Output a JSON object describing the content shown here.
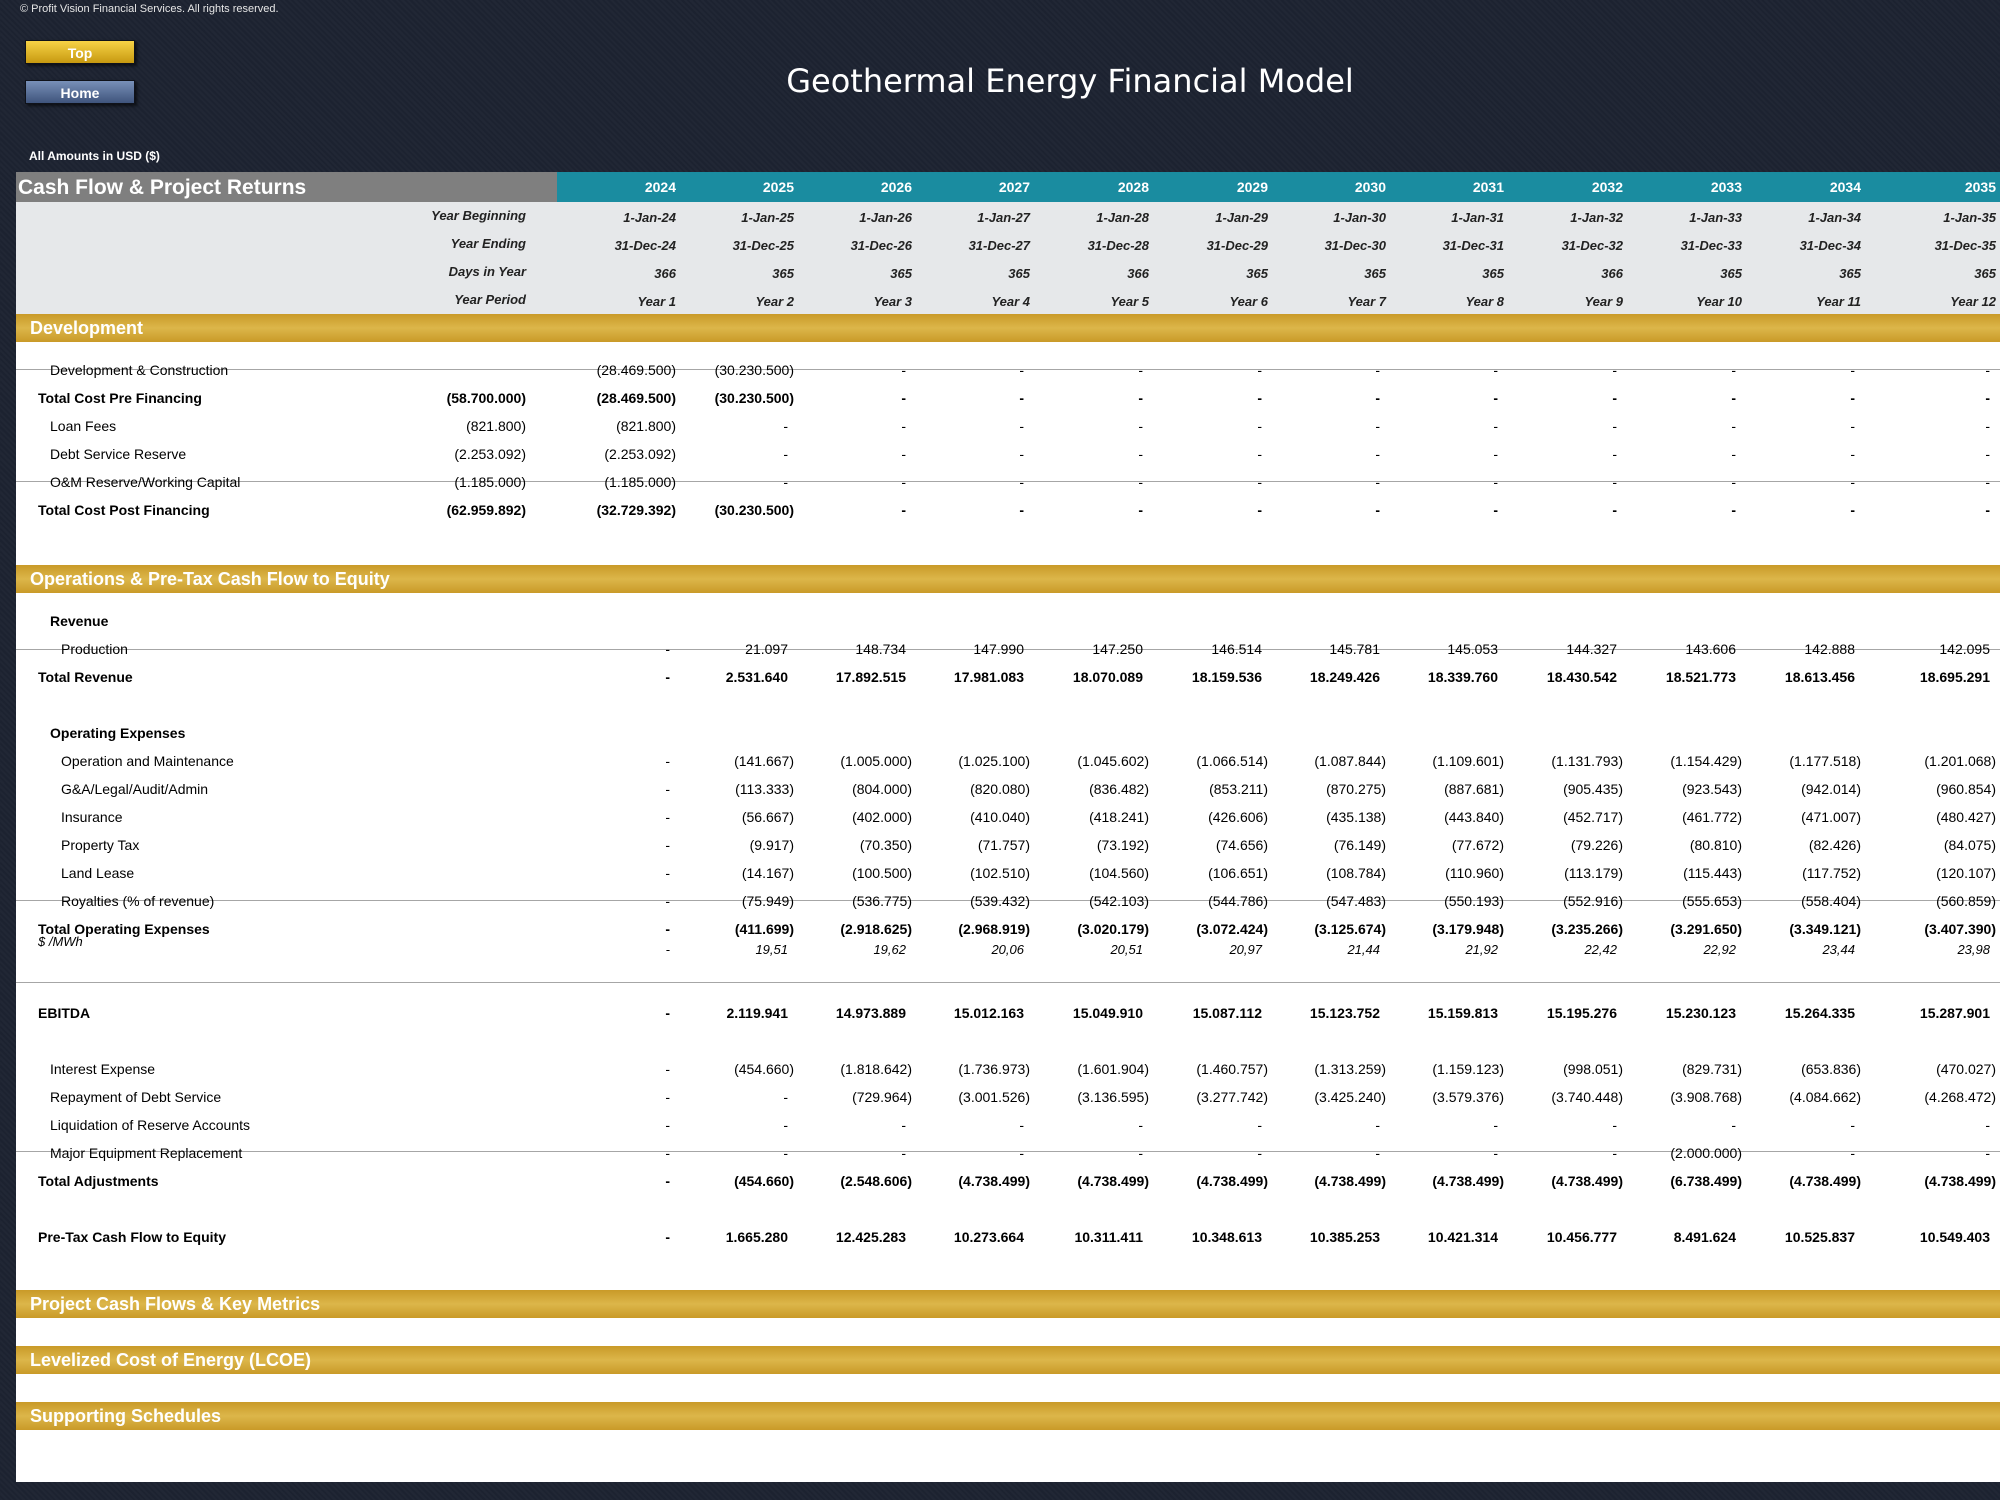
{
  "copyright": "© Profit Vision Financial Services. All rights reserved.",
  "nav": {
    "top": "Top",
    "home": "Home"
  },
  "title": "Geothermal Energy Financial Model",
  "amounts_label": "All Amounts in  USD ($)",
  "section_header": "Cash Flow & Project Returns",
  "years": [
    "2024",
    "2025",
    "2026",
    "2027",
    "2028",
    "2029",
    "2030",
    "2031",
    "2032",
    "2033",
    "2034",
    "2035"
  ],
  "meta": [
    {
      "label": "Year Beginning",
      "values": [
        "1-Jan-24",
        "1-Jan-25",
        "1-Jan-26",
        "1-Jan-27",
        "1-Jan-28",
        "1-Jan-29",
        "1-Jan-30",
        "1-Jan-31",
        "1-Jan-32",
        "1-Jan-33",
        "1-Jan-34",
        "1-Jan-35"
      ]
    },
    {
      "label": "Year Ending",
      "values": [
        "31-Dec-24",
        "31-Dec-25",
        "31-Dec-26",
        "31-Dec-27",
        "31-Dec-28",
        "31-Dec-29",
        "31-Dec-30",
        "31-Dec-31",
        "31-Dec-32",
        "31-Dec-33",
        "31-Dec-34",
        "31-Dec-35"
      ]
    },
    {
      "label": "Days in Year",
      "values": [
        "366",
        "365",
        "365",
        "365",
        "366",
        "365",
        "365",
        "365",
        "366",
        "365",
        "365",
        "365"
      ]
    },
    {
      "label": "Year Period",
      "values": [
        "Year 1",
        "Year 2",
        "Year 3",
        "Year 4",
        "Year 5",
        "Year 6",
        "Year 7",
        "Year 8",
        "Year 9",
        "Year 10",
        "Year 11",
        "Year 12"
      ]
    }
  ],
  "bands": {
    "development": "Development",
    "operations": "Operations & Pre-Tax Cash Flow to Equity",
    "project": "Project Cash Flows & Key Metrics",
    "lcoe": "Levelized Cost of Energy (LCOE)",
    "supporting": "Supporting Schedules"
  },
  "rows": [
    {
      "label": "Development & Construction",
      "total": "",
      "values": [
        "(28.469.500)",
        "(30.230.500)",
        "-",
        "-",
        "-",
        "-",
        "-",
        "-",
        "-",
        "-",
        "-",
        "-"
      ]
    },
    {
      "label": "Total Cost Pre Financing",
      "total": "(58.700.000)",
      "values": [
        "(28.469.500)",
        "(30.230.500)",
        "-",
        "-",
        "-",
        "-",
        "-",
        "-",
        "-",
        "-",
        "-",
        "-"
      ]
    },
    {
      "label": "Loan Fees",
      "total": "(821.800)",
      "values": [
        "(821.800)",
        "-",
        "-",
        "-",
        "-",
        "-",
        "-",
        "-",
        "-",
        "-",
        "-",
        "-"
      ]
    },
    {
      "label": "Debt Service Reserve",
      "total": "(2.253.092)",
      "values": [
        "(2.253.092)",
        "-",
        "-",
        "-",
        "-",
        "-",
        "-",
        "-",
        "-",
        "-",
        "-",
        "-"
      ]
    },
    {
      "label": "O&M Reserve/Working Capital",
      "total": "(1.185.000)",
      "values": [
        "(1.185.000)",
        "-",
        "-",
        "-",
        "-",
        "-",
        "-",
        "-",
        "-",
        "-",
        "-",
        "-"
      ]
    },
    {
      "label": "Total Cost Post Financing",
      "total": "(62.959.892)",
      "values": [
        "(32.729.392)",
        "(30.230.500)",
        "-",
        "-",
        "-",
        "-",
        "-",
        "-",
        "-",
        "-",
        "-",
        "-"
      ]
    },
    {
      "label": "Revenue",
      "total": "",
      "values": [
        "",
        "",
        "",
        "",
        "",
        "",
        "",
        "",
        "",
        "",
        "",
        ""
      ]
    },
    {
      "label": "Production",
      "total": "",
      "values": [
        "-",
        "21.097",
        "148.734",
        "147.990",
        "147.250",
        "146.514",
        "145.781",
        "145.053",
        "144.327",
        "143.606",
        "142.888",
        "142.095"
      ]
    },
    {
      "label": "Total Revenue",
      "total": "",
      "values": [
        "-",
        "2.531.640",
        "17.892.515",
        "17.981.083",
        "18.070.089",
        "18.159.536",
        "18.249.426",
        "18.339.760",
        "18.430.542",
        "18.521.773",
        "18.613.456",
        "18.695.291"
      ]
    },
    {
      "label": "Operating Expenses",
      "total": "",
      "values": [
        "",
        "",
        "",
        "",
        "",
        "",
        "",
        "",
        "",
        "",
        "",
        ""
      ]
    },
    {
      "label": "Operation and Maintenance",
      "total": "",
      "values": [
        "-",
        "(141.667)",
        "(1.005.000)",
        "(1.025.100)",
        "(1.045.602)",
        "(1.066.514)",
        "(1.087.844)",
        "(1.109.601)",
        "(1.131.793)",
        "(1.154.429)",
        "(1.177.518)",
        "(1.201.068)"
      ]
    },
    {
      "label": "G&A/Legal/Audit/Admin",
      "total": "",
      "values": [
        "-",
        "(113.333)",
        "(804.000)",
        "(820.080)",
        "(836.482)",
        "(853.211)",
        "(870.275)",
        "(887.681)",
        "(905.435)",
        "(923.543)",
        "(942.014)",
        "(960.854)"
      ]
    },
    {
      "label": "Insurance",
      "total": "",
      "values": [
        "-",
        "(56.667)",
        "(402.000)",
        "(410.040)",
        "(418.241)",
        "(426.606)",
        "(435.138)",
        "(443.840)",
        "(452.717)",
        "(461.772)",
        "(471.007)",
        "(480.427)"
      ]
    },
    {
      "label": "Property Tax",
      "total": "",
      "values": [
        "-",
        "(9.917)",
        "(70.350)",
        "(71.757)",
        "(73.192)",
        "(74.656)",
        "(76.149)",
        "(77.672)",
        "(79.226)",
        "(80.810)",
        "(82.426)",
        "(84.075)"
      ]
    },
    {
      "label": "Land Lease",
      "total": "",
      "values": [
        "-",
        "(14.167)",
        "(100.500)",
        "(102.510)",
        "(104.560)",
        "(106.651)",
        "(108.784)",
        "(110.960)",
        "(113.179)",
        "(115.443)",
        "(117.752)",
        "(120.107)"
      ]
    },
    {
      "label": "Royalties (% of revenue)",
      "total": "",
      "values": [
        "-",
        "(75.949)",
        "(536.775)",
        "(539.432)",
        "(542.103)",
        "(544.786)",
        "(547.483)",
        "(550.193)",
        "(552.916)",
        "(555.653)",
        "(558.404)",
        "(560.859)"
      ]
    },
    {
      "label": "Total Operating Expenses",
      "total": "",
      "values": [
        "-",
        "(411.699)",
        "(2.918.625)",
        "(2.968.919)",
        "(3.020.179)",
        "(3.072.424)",
        "(3.125.674)",
        "(3.179.948)",
        "(3.235.266)",
        "(3.291.650)",
        "(3.349.121)",
        "(3.407.390)"
      ]
    },
    {
      "label": "$ /MWh",
      "total": "",
      "values": [
        "-",
        "19,51",
        "19,62",
        "20,06",
        "20,51",
        "20,97",
        "21,44",
        "21,92",
        "22,42",
        "22,92",
        "23,44",
        "23,98"
      ]
    },
    {
      "label": "EBITDA",
      "total": "",
      "values": [
        "-",
        "2.119.941",
        "14.973.889",
        "15.012.163",
        "15.049.910",
        "15.087.112",
        "15.123.752",
        "15.159.813",
        "15.195.276",
        "15.230.123",
        "15.264.335",
        "15.287.901"
      ]
    },
    {
      "label": "Interest Expense",
      "total": "",
      "values": [
        "-",
        "(454.660)",
        "(1.818.642)",
        "(1.736.973)",
        "(1.601.904)",
        "(1.460.757)",
        "(1.313.259)",
        "(1.159.123)",
        "(998.051)",
        "(829.731)",
        "(653.836)",
        "(470.027)"
      ]
    },
    {
      "label": "Repayment of Debt Service",
      "total": "",
      "values": [
        "-",
        "-",
        "(729.964)",
        "(3.001.526)",
        "(3.136.595)",
        "(3.277.742)",
        "(3.425.240)",
        "(3.579.376)",
        "(3.740.448)",
        "(3.908.768)",
        "(4.084.662)",
        "(4.268.472)"
      ]
    },
    {
      "label": "Liquidation of Reserve Accounts",
      "total": "",
      "values": [
        "-",
        "-",
        "-",
        "-",
        "-",
        "-",
        "-",
        "-",
        "-",
        "-",
        "-",
        "-"
      ]
    },
    {
      "label": "Major Equipment Replacement",
      "total": "",
      "values": [
        "-",
        "-",
        "-",
        "-",
        "-",
        "-",
        "-",
        "-",
        "-",
        "(2.000.000)",
        "-",
        "-"
      ]
    },
    {
      "label": "Total Adjustments",
      "total": "",
      "values": [
        "-",
        "(454.660)",
        "(2.548.606)",
        "(4.738.499)",
        "(4.738.499)",
        "(4.738.499)",
        "(4.738.499)",
        "(4.738.499)",
        "(4.738.499)",
        "(6.738.499)",
        "(4.738.499)",
        "(4.738.499)"
      ]
    },
    {
      "label": "Pre-Tax Cash Flow to Equity",
      "total": "",
      "values": [
        "-",
        "1.665.280",
        "12.425.283",
        "10.273.664",
        "10.311.411",
        "10.348.613",
        "10.385.253",
        "10.421.314",
        "10.456.777",
        "8.491.624",
        "10.525.837",
        "10.549.403"
      ]
    }
  ]
}
